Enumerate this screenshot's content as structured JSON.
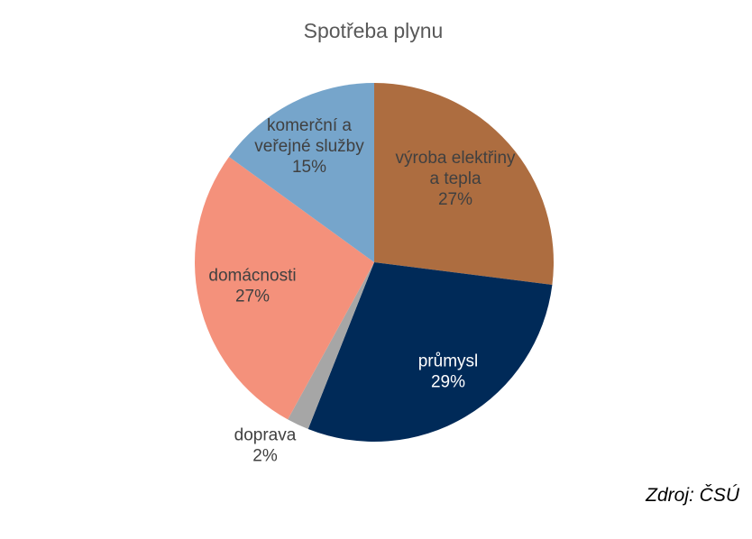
{
  "chart_data": {
    "type": "pie",
    "title": "Spotřeba plynu",
    "slices": [
      {
        "label": [
          "výroba elektřiny",
          "a tepla"
        ],
        "value": 27,
        "value_label": "27%",
        "color": "#AD6D40",
        "label_color": "#404040"
      },
      {
        "label": [
          "průmysl"
        ],
        "value": 29,
        "value_label": "29%",
        "color": "#002A58",
        "label_color": "#FFFFFF"
      },
      {
        "label": [
          "doprava"
        ],
        "value": 2,
        "value_label": "2%",
        "color": "#A6A6A6",
        "label_color": "#404040"
      },
      {
        "label": [
          "domácnosti"
        ],
        "value": 27,
        "value_label": "27%",
        "color": "#F4917B",
        "label_color": "#404040"
      },
      {
        "label": [
          "komerční a",
          "veřejné služby"
        ],
        "value": 15,
        "value_label": "15%",
        "color": "#76A5CB",
        "label_color": "#404040"
      }
    ]
  },
  "source": "Zdroj: ČSÚ"
}
